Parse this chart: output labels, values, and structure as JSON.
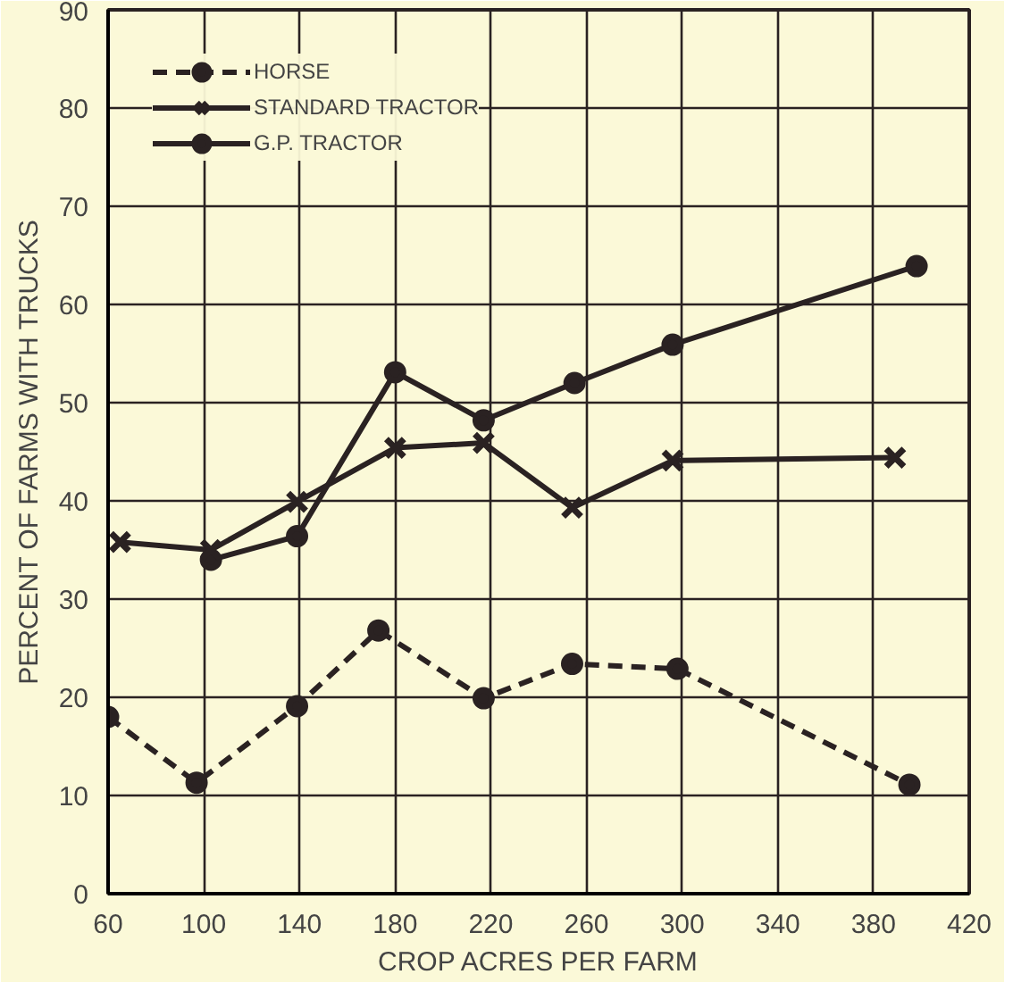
{
  "chart_data": {
    "type": "line",
    "xlabel": "CROP ACRES PER FARM",
    "ylabel": "PERCENT OF FARMS WITH TRUCKS",
    "xlim": [
      60,
      420
    ],
    "ylim": [
      0,
      90
    ],
    "xticks": [
      60,
      100,
      140,
      180,
      220,
      260,
      300,
      340,
      380,
      420
    ],
    "yticks": [
      0,
      10,
      20,
      30,
      40,
      50,
      60,
      70,
      80,
      90
    ],
    "grid": true,
    "legend": "top left",
    "series": [
      {
        "name": "HORSE",
        "color": "#2a2222",
        "line_style": "dashed",
        "marker": "circle",
        "x": [
          60,
          97,
          139,
          173,
          217,
          254,
          298,
          395
        ],
        "values": [
          18,
          11.3,
          19.1,
          26.8,
          19.9,
          23.4,
          22.9,
          11.1
        ]
      },
      {
        "name": "STANDARD TRACTOR",
        "color": "#2a2222",
        "line_style": "solid",
        "marker": "cross",
        "x": [
          65,
          103,
          139,
          180,
          217,
          254,
          296,
          389
        ],
        "values": [
          35.8,
          35.0,
          39.9,
          45.4,
          45.9,
          39.3,
          44.1,
          44.4
        ]
      },
      {
        "name": "G.P. TRACTOR",
        "color": "#2a2222",
        "line_style": "solid",
        "marker": "circle",
        "x": [
          103,
          139,
          180,
          217,
          255,
          296,
          398
        ],
        "values": [
          34.0,
          36.4,
          53.1,
          48.2,
          52.0,
          55.9,
          63.9
        ]
      }
    ]
  }
}
